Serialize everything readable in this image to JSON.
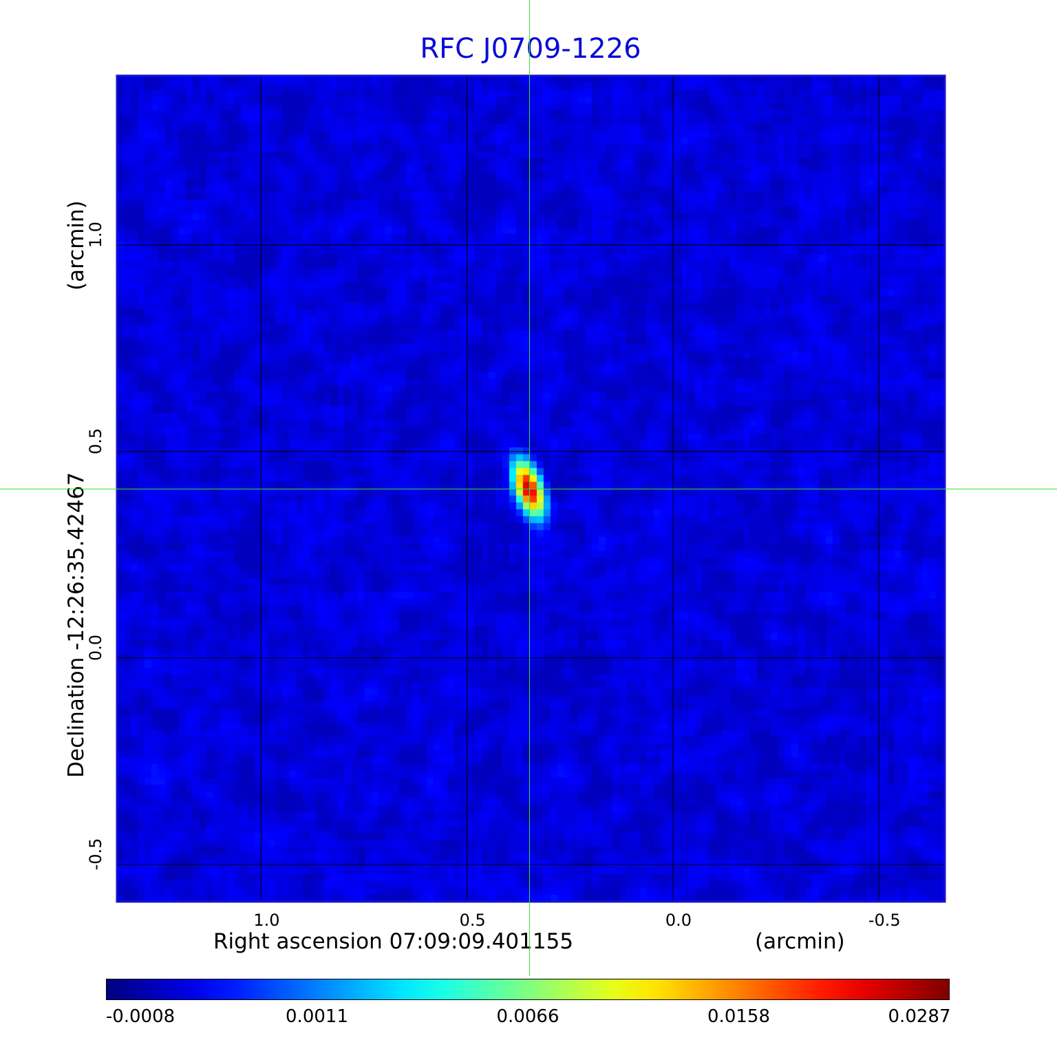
{
  "chart_data": {
    "type": "heatmap",
    "title": "RFC J0709-1226",
    "xlabel": "Right ascension  07:09:09.401155",
    "xunit": "(arcmin)",
    "ylabel": "Declination  -12:26:35.42467",
    "yunit": "(arcmin)",
    "xlim": [
      1.35,
      -0.66
    ],
    "ylim": [
      -0.59,
      1.41
    ],
    "x_ticks": [
      1.0,
      0.5,
      0.0,
      -0.5
    ],
    "x_tick_labels": [
      "1.0",
      "0.5",
      "0.0",
      "-0.5"
    ],
    "y_ticks": [
      1.0,
      0.5,
      0.0,
      -0.5
    ],
    "y_tick_labels": [
      "1.0",
      "0.5",
      "0.0",
      "-0.5"
    ],
    "grid": true,
    "colormap": "jet",
    "colorbar": {
      "ticks": [
        "-0.0008",
        "0.0011",
        "0.0066",
        "0.0158",
        "0.0287"
      ],
      "range": [
        -0.0008,
        0.0287
      ],
      "position": "bottom"
    },
    "source": {
      "x": 0.35,
      "y": 0.41,
      "peak": 0.0287,
      "major_axis": 0.09,
      "minor_axis": 0.04,
      "position_angle_deg": 20
    },
    "noise_level": 0.0004,
    "crosshair": {
      "x": 0.35,
      "y": 0.41,
      "color": "#35e035"
    }
  }
}
